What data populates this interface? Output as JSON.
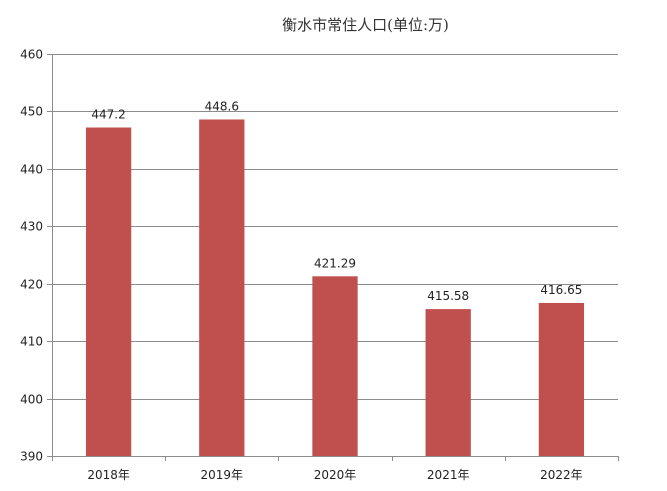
{
  "chart_data": {
    "type": "bar",
    "title": "衡水市常住人口(单位:万)",
    "xlabel": "",
    "ylabel": "",
    "categories": [
      "2018年",
      "2019年",
      "2020年",
      "2021年",
      "2022年"
    ],
    "values": [
      447.2,
      448.6,
      421.29,
      415.58,
      416.65
    ],
    "value_labels": [
      "447.2",
      "448.6",
      "421.29",
      "415.58",
      "416.65"
    ],
    "ylim": [
      390,
      460
    ],
    "yticks": [
      390,
      400,
      410,
      420,
      430,
      440,
      450,
      460
    ],
    "grid": true,
    "legend": "none",
    "bar_color": "#c0504d"
  }
}
